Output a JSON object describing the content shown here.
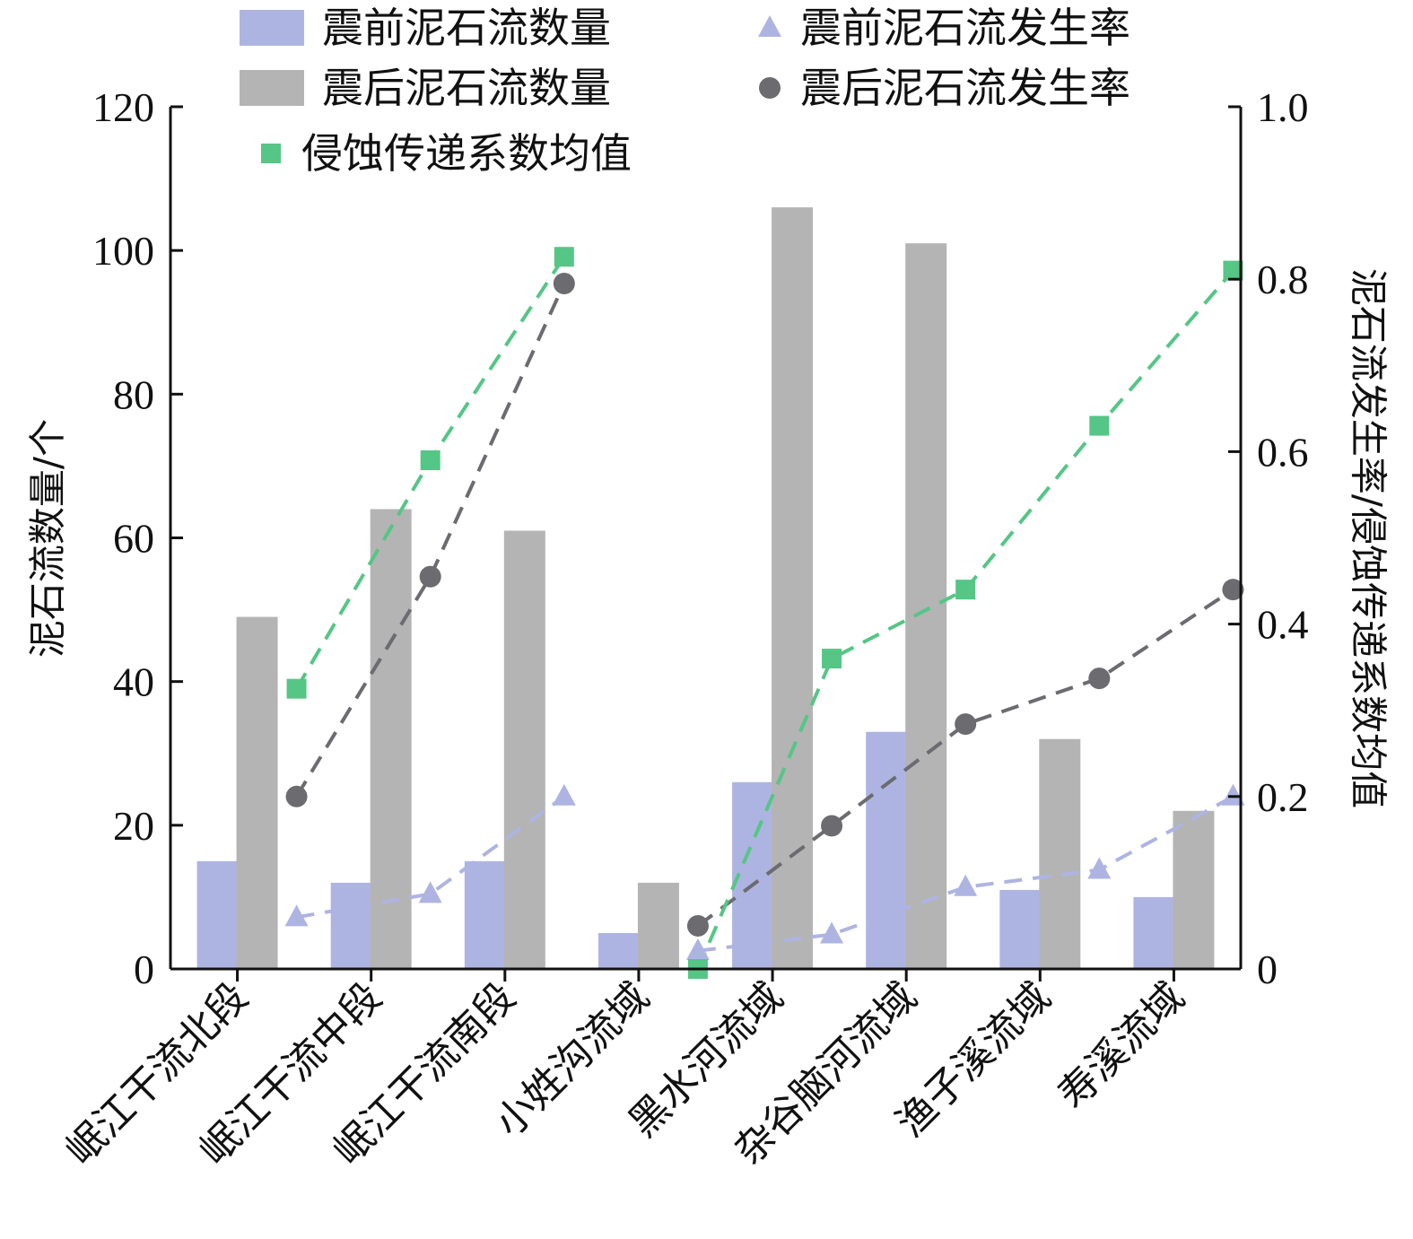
{
  "chart_data": {
    "type": "bar",
    "categories": [
      "岷江干流北段",
      "岷江干流中段",
      "岷江干流南段",
      "小姓沟流域",
      "黑水河流域",
      "杂谷脑河流域",
      "渔子溪流域",
      "寿溪流域"
    ],
    "series": [
      {
        "name": "震前泥石流数量",
        "kind": "bar",
        "axis": "left",
        "color": "#aeb4e2",
        "values": [
          15,
          12,
          15,
          5,
          26,
          33,
          11,
          10
        ]
      },
      {
        "name": "震后泥石流数量",
        "kind": "bar",
        "axis": "left",
        "color": "#b4b4b4",
        "values": [
          49,
          64,
          61,
          12,
          106,
          101,
          32,
          22
        ]
      },
      {
        "name": "震前泥石流发生率",
        "kind": "line",
        "marker": "triangle",
        "axis": "right",
        "color": "#aeb4e2",
        "values": [
          0.06,
          0.087,
          0.2,
          0.021,
          0.04,
          0.095,
          0.115,
          0.2
        ]
      },
      {
        "name": "震后泥石流发生率",
        "kind": "line",
        "marker": "circle",
        "axis": "right",
        "color": "#6b6b70",
        "values": [
          0.2,
          0.455,
          0.795,
          0.05,
          0.166,
          0.284,
          0.337,
          0.44
        ]
      },
      {
        "name": "侵蚀传递系数均值",
        "kind": "line",
        "marker": "square",
        "axis": "right",
        "color": "#55c685",
        "values": [
          0.325,
          0.59,
          0.826,
          0.0,
          0.36,
          0.44,
          0.63,
          0.81
        ]
      }
    ],
    "ylabel": "泥石流数量/个",
    "y2label": "泥石流发生率/侵蚀传递系数均值",
    "ylim": [
      0,
      120
    ],
    "y2lim": [
      0,
      1.0
    ],
    "yticks": [
      "0",
      "20",
      "40",
      "60",
      "80",
      "100",
      "120"
    ],
    "y2ticks": [
      "0",
      "0.2",
      "0.4",
      "0.6",
      "0.8",
      "1.0"
    ],
    "grid": false,
    "legend_position": "top"
  }
}
